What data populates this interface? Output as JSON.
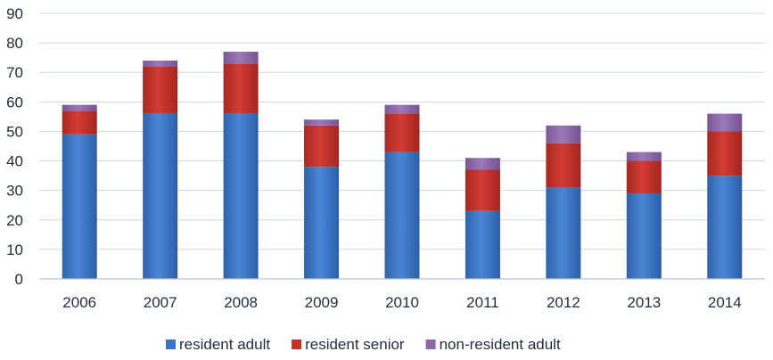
{
  "chart_data": {
    "type": "bar",
    "stacked": true,
    "title": "",
    "xlabel": "",
    "ylabel": "",
    "categories": [
      "2006",
      "2007",
      "2008",
      "2009",
      "2010",
      "2011",
      "2012",
      "2013",
      "2014"
    ],
    "series": [
      {
        "name": "resident adult",
        "color": "#3a74c4",
        "values": [
          49,
          56,
          56,
          38,
          43,
          23,
          31,
          29,
          35
        ]
      },
      {
        "name": "resident senior",
        "color": "#c0332b",
        "values": [
          8,
          16,
          17,
          14,
          13,
          14,
          15,
          11,
          15
        ]
      },
      {
        "name": "non-resident adult",
        "color": "#8b68a8",
        "values": [
          2,
          2,
          4,
          2,
          3,
          4,
          6,
          3,
          6
        ]
      }
    ],
    "ylim": [
      0,
      90
    ],
    "yticks": [
      "0",
      "10",
      "20",
      "30",
      "40",
      "50",
      "60",
      "70",
      "80",
      "90"
    ],
    "grid": true,
    "legend_position": "bottom"
  }
}
